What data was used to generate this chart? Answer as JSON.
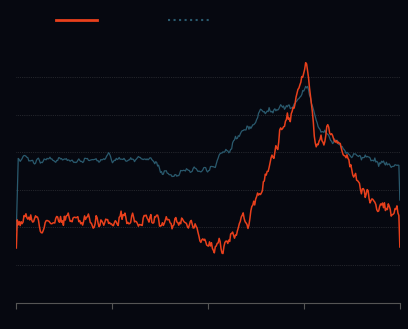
{
  "background_color": "#060810",
  "line1_color": "#e8401c",
  "line2_color": "#2a5a6e",
  "grid_color": "#aaaaaa",
  "grid_alpha": 0.35,
  "grid_linestyle": ":",
  "ylim": [
    0,
    7
  ],
  "grid_lines_y": [
    1.0,
    2.0,
    3.0,
    4.0,
    5.0,
    6.0
  ],
  "n_points": 400,
  "legend_line1_style": "solid",
  "legend_line2_style": "dotted"
}
